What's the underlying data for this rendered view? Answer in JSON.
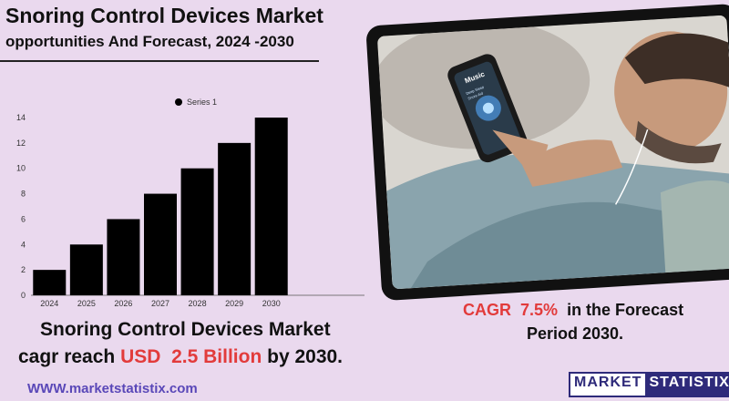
{
  "header": {
    "title": "Snoring Control Devices Market",
    "subtitle": "opportunities And Forecast, 2024 -2030"
  },
  "chart_data": {
    "type": "bar",
    "title": "",
    "xlabel": "",
    "ylabel": "",
    "categories": [
      "2024",
      "2025",
      "2026",
      "2027",
      "2028",
      "2029",
      "2030"
    ],
    "series": [
      {
        "name": "Series 1",
        "values": [
          2,
          4,
          6,
          8,
          10,
          12,
          14
        ]
      }
    ],
    "ylim": [
      0,
      14
    ],
    "yticks": [
      "0",
      "2",
      "4",
      "6",
      "8",
      "10",
      "12",
      "14"
    ],
    "grid": false,
    "legend": "top-center",
    "colors": {
      "bar": "#000000",
      "axis": "#555555"
    }
  },
  "cagr": {
    "prefix": "CAGR",
    "value": "7.5%",
    "line1_suffix": "in the  Forecast",
    "line2": "Period  2030."
  },
  "summary": {
    "line1": "Snoring Control Devices Market",
    "line2_prefix": "cagr reach",
    "currency": "USD",
    "amount": "2.5 Billion",
    "line2_suffix": "by 2030."
  },
  "footer": {
    "url": "WWW.marketstatistix.com"
  },
  "logo": {
    "part1": "MARKET",
    "part2": "STATISTIX"
  },
  "photo": {
    "phone_title": "Music",
    "phone_track": "Deep Sleep",
    "phone_artist": "Snore Aid"
  }
}
